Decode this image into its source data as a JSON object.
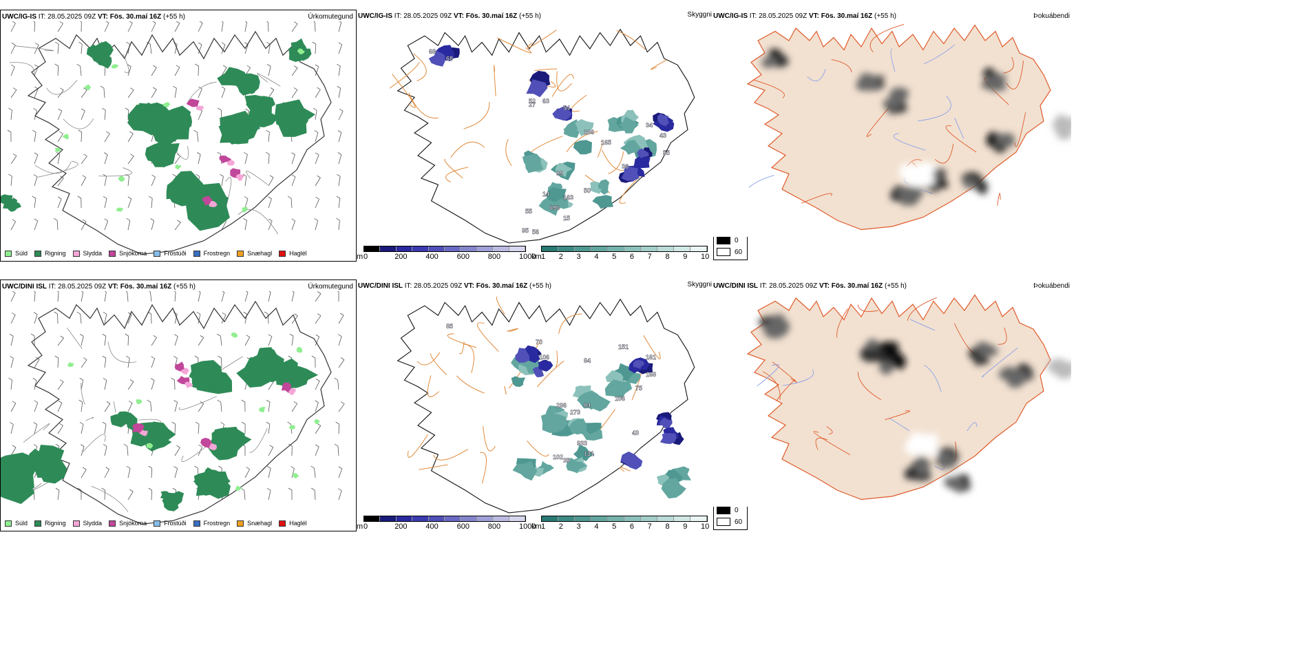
{
  "rows": [
    {
      "model": "UWC/IG-IS",
      "it_label": "IT:",
      "it_value": "28.05.2025 09Z",
      "vt_label": "VT:",
      "vt_value": "Fös. 30.maí 16Z",
      "lead": "(+55 h)"
    },
    {
      "model": "UWC/DINI ISL",
      "it_label": "IT:",
      "it_value": "28.05.2025 09Z",
      "vt_label": "VT:",
      "vt_value": "Fös. 30.maí 16Z",
      "lead": "(+55 h)"
    }
  ],
  "panel_titles": {
    "precip": "Úrkomutegund",
    "visibility": "Skyggni",
    "fog": "Þokuábendi"
  },
  "precip_legend": [
    {
      "label": "Súld",
      "color": "#90ee90"
    },
    {
      "label": "Rigning",
      "color": "#2e8b57"
    },
    {
      "label": "Slydda",
      "color": "#f4a6d7"
    },
    {
      "label": "Snjókoma",
      "color": "#c0479a"
    },
    {
      "label": "Frostúði",
      "color": "#87bde8"
    },
    {
      "label": "Frostregn",
      "color": "#3a6fc4"
    },
    {
      "label": "Snæhagl",
      "color": "#f0a020"
    },
    {
      "label": "Haglél",
      "color": "#e01010"
    }
  ],
  "ceiling_bar": {
    "unit": "m",
    "ticks": [
      "0",
      "200",
      "400",
      "600",
      "800",
      "1000"
    ],
    "colors": [
      "#000000",
      "#1a1a7a",
      "#2a2aa0",
      "#3b3bb0",
      "#5050b8",
      "#6a6ac4",
      "#8585cc",
      "#a0a0d8",
      "#bbbbe2",
      "#d6d6ee"
    ]
  },
  "visibility_bar": {
    "unit": "km",
    "ticks": [
      "1",
      "2",
      "3",
      "4",
      "5",
      "6",
      "7",
      "8",
      "9",
      "10"
    ],
    "colors": [
      "#2a7a74",
      "#3d8a84",
      "#4f9892",
      "#62a69f",
      "#76b3ad",
      "#8cc1bb",
      "#a3cec9",
      "#badbd7",
      "#d2e8e6",
      "#eaf4f3"
    ]
  },
  "fog_legend": [
    {
      "label": "0",
      "color": "#000000"
    },
    {
      "label": "60",
      "color": "#ffffff"
    }
  ],
  "top_labels": [
    {
      "text": "68"
    },
    {
      "text": "68"
    },
    {
      "text": "52"
    },
    {
      "text": "63"
    },
    {
      "text": "27"
    },
    {
      "text": "54"
    },
    {
      "text": "166"
    },
    {
      "text": "165"
    },
    {
      "text": "34"
    },
    {
      "text": "43"
    },
    {
      "text": "55"
    },
    {
      "text": "36"
    },
    {
      "text": "99"
    },
    {
      "text": "14"
    },
    {
      "text": "163"
    },
    {
      "text": "696"
    },
    {
      "text": "50"
    },
    {
      "text": "15"
    },
    {
      "text": "55"
    },
    {
      "text": "95"
    },
    {
      "text": "56"
    }
  ],
  "bottom_labels": [
    {
      "text": "85"
    },
    {
      "text": "70"
    },
    {
      "text": "106"
    },
    {
      "text": "151"
    },
    {
      "text": "84"
    },
    {
      "text": "161"
    },
    {
      "text": "168"
    },
    {
      "text": "75"
    },
    {
      "text": "106"
    },
    {
      "text": "84"
    },
    {
      "text": "286"
    },
    {
      "text": "273"
    },
    {
      "text": "43"
    },
    {
      "text": "933"
    },
    {
      "text": "131"
    },
    {
      "text": "35"
    },
    {
      "text": "102"
    }
  ]
}
